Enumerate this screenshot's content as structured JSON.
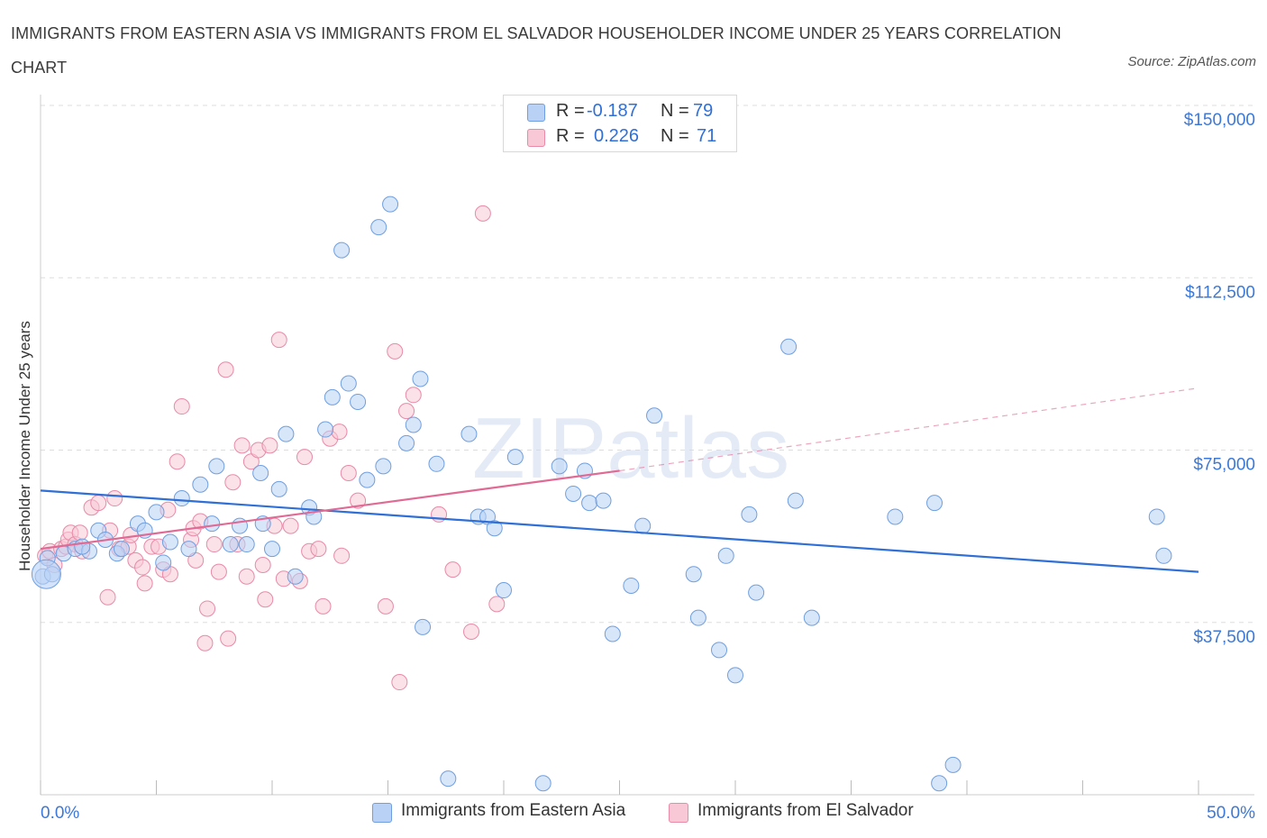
{
  "title": "IMMIGRANTS FROM EASTERN ASIA VS IMMIGRANTS FROM EL SALVADOR HOUSEHOLDER INCOME UNDER 25 YEARS CORRELATION CHART",
  "source": "Source: ZipAtlas.com",
  "watermark": "ZIPatlas",
  "colors": {
    "blue_fill": "#b8d1f5",
    "blue_stroke": "#6f9fe0",
    "blue_line": "#2f6fd6",
    "pink_fill": "#f8c8d6",
    "pink_stroke": "#e88aa8",
    "pink_line": "#e06a94",
    "axis_label_color": "#3b78d8",
    "grid": "#dddddd"
  },
  "legend_top": {
    "rows": [
      {
        "r_label": "R =",
        "r_value": "-0.187",
        "n_label": "N =",
        "n_value": "79"
      },
      {
        "r_label": "R =",
        "r_value": "0.226",
        "n_label": "N =",
        "n_value": "71"
      }
    ]
  },
  "legend_bottom": [
    {
      "label": "Immigrants from Eastern Asia"
    },
    {
      "label": "Immigrants from El Salvador"
    }
  ],
  "chart_data": {
    "type": "scatter",
    "title": "IMMIGRANTS FROM EASTERN ASIA VS IMMIGRANTS FROM EL SALVADOR HOUSEHOLDER INCOME UNDER 25 YEARS CORRELATION CHART",
    "xlabel": "",
    "ylabel": "Householder Income Under 25 years",
    "xlim": [
      0,
      50
    ],
    "ylim": [
      0,
      150000
    ],
    "x_tick_labels": [
      "0.0%",
      "50.0%"
    ],
    "y_ticks": [
      37500,
      75000,
      112500,
      150000
    ],
    "y_tick_labels": [
      "$37,500",
      "$75,000",
      "$112,500",
      "$150,000"
    ],
    "grid": "horizontal dashed",
    "legend_placement": "top-center and bottom",
    "series": [
      {
        "name": "Immigrants from Eastern Asia",
        "trend": {
          "x": [
            0,
            50
          ],
          "y": [
            66200,
            48500
          ]
        },
        "points": [
          [
            0.1,
            47500
          ],
          [
            0.3,
            51500
          ],
          [
            1.0,
            52500
          ],
          [
            1.5,
            53500
          ],
          [
            2.1,
            53000
          ],
          [
            2.5,
            57500
          ],
          [
            2.8,
            55500
          ],
          [
            3.3,
            52500
          ],
          [
            3.5,
            53500
          ],
          [
            4.2,
            59000
          ],
          [
            4.5,
            57500
          ],
          [
            5.0,
            61500
          ],
          [
            5.3,
            50500
          ],
          [
            5.6,
            55000
          ],
          [
            6.1,
            64500
          ],
          [
            6.4,
            53500
          ],
          [
            6.9,
            67500
          ],
          [
            7.4,
            59000
          ],
          [
            7.6,
            71500
          ],
          [
            8.2,
            54500
          ],
          [
            8.6,
            58500
          ],
          [
            8.9,
            54500
          ],
          [
            9.5,
            70000
          ],
          [
            9.6,
            59000
          ],
          [
            10.0,
            53500
          ],
          [
            10.3,
            66500
          ],
          [
            10.6,
            78500
          ],
          [
            11.0,
            47500
          ],
          [
            11.6,
            62500
          ],
          [
            11.8,
            60500
          ],
          [
            12.3,
            79500
          ],
          [
            12.6,
            86500
          ],
          [
            13.0,
            118500
          ],
          [
            13.3,
            89500
          ],
          [
            13.7,
            85500
          ],
          [
            14.1,
            68500
          ],
          [
            14.6,
            123500
          ],
          [
            14.8,
            71500
          ],
          [
            15.1,
            128500
          ],
          [
            15.8,
            76500
          ],
          [
            16.1,
            80500
          ],
          [
            16.4,
            90500
          ],
          [
            16.5,
            36500
          ],
          [
            17.1,
            72000
          ],
          [
            17.6,
            3500
          ],
          [
            18.5,
            78500
          ],
          [
            18.9,
            60500
          ],
          [
            19.3,
            60500
          ],
          [
            19.6,
            58000
          ],
          [
            20.0,
            44500
          ],
          [
            20.5,
            73500
          ],
          [
            21.7,
            2500
          ],
          [
            22.4,
            71500
          ],
          [
            23.0,
            65500
          ],
          [
            23.5,
            70500
          ],
          [
            23.7,
            63500
          ],
          [
            24.3,
            64000
          ],
          [
            24.7,
            35000
          ],
          [
            25.5,
            45500
          ],
          [
            26.0,
            58500
          ],
          [
            26.5,
            82500
          ],
          [
            28.2,
            48000
          ],
          [
            28.4,
            38500
          ],
          [
            29.3,
            31500
          ],
          [
            29.6,
            52000
          ],
          [
            30.0,
            26000
          ],
          [
            30.6,
            61000
          ],
          [
            30.9,
            44000
          ],
          [
            32.3,
            97500
          ],
          [
            32.6,
            64000
          ],
          [
            33.3,
            38500
          ],
          [
            36.9,
            60500
          ],
          [
            38.6,
            63500
          ],
          [
            38.8,
            2500
          ],
          [
            39.4,
            6500
          ],
          [
            48.2,
            60500
          ],
          [
            48.5,
            52000
          ],
          [
            0.5,
            48000
          ],
          [
            1.8,
            54000
          ]
        ]
      },
      {
        "name": "Immigrants from El Salvador",
        "trend": {
          "x": [
            0,
            25
          ],
          "y": [
            53500,
            70500
          ]
        },
        "trend_dashed": {
          "x": [
            25,
            50
          ],
          "y": [
            70500,
            88500
          ]
        },
        "points": [
          [
            0.2,
            52000
          ],
          [
            0.4,
            53000
          ],
          [
            0.6,
            50000
          ],
          [
            0.9,
            53500
          ],
          [
            1.1,
            54000
          ],
          [
            1.2,
            55500
          ],
          [
            1.3,
            57000
          ],
          [
            1.5,
            54500
          ],
          [
            1.7,
            57000
          ],
          [
            1.8,
            53000
          ],
          [
            2.2,
            62500
          ],
          [
            2.5,
            63500
          ],
          [
            2.9,
            43000
          ],
          [
            3.0,
            57500
          ],
          [
            3.2,
            64500
          ],
          [
            3.4,
            53500
          ],
          [
            3.8,
            54000
          ],
          [
            3.9,
            56500
          ],
          [
            4.1,
            51000
          ],
          [
            4.4,
            49500
          ],
          [
            4.5,
            46000
          ],
          [
            4.8,
            54000
          ],
          [
            5.1,
            54000
          ],
          [
            5.3,
            49000
          ],
          [
            5.5,
            62000
          ],
          [
            5.6,
            48000
          ],
          [
            5.9,
            72500
          ],
          [
            6.1,
            84500
          ],
          [
            6.5,
            55500
          ],
          [
            6.6,
            58000
          ],
          [
            6.7,
            51000
          ],
          [
            6.9,
            59500
          ],
          [
            7.1,
            33000
          ],
          [
            7.2,
            40500
          ],
          [
            7.5,
            54500
          ],
          [
            7.7,
            48500
          ],
          [
            8.0,
            92500
          ],
          [
            8.1,
            34000
          ],
          [
            8.3,
            68000
          ],
          [
            8.5,
            54500
          ],
          [
            8.7,
            76000
          ],
          [
            8.9,
            47500
          ],
          [
            9.1,
            72500
          ],
          [
            9.4,
            75000
          ],
          [
            9.6,
            50000
          ],
          [
            9.7,
            42500
          ],
          [
            9.9,
            76000
          ],
          [
            10.1,
            58500
          ],
          [
            10.3,
            99000
          ],
          [
            10.5,
            47000
          ],
          [
            10.8,
            58500
          ],
          [
            11.2,
            46500
          ],
          [
            11.4,
            73500
          ],
          [
            11.6,
            53000
          ],
          [
            12.0,
            53500
          ],
          [
            12.2,
            41000
          ],
          [
            12.5,
            77500
          ],
          [
            12.9,
            79000
          ],
          [
            13.0,
            52000
          ],
          [
            13.3,
            70000
          ],
          [
            13.7,
            64000
          ],
          [
            14.9,
            41000
          ],
          [
            15.3,
            96500
          ],
          [
            15.5,
            24500
          ],
          [
            15.8,
            83500
          ],
          [
            16.1,
            87000
          ],
          [
            17.2,
            61000
          ],
          [
            17.8,
            49000
          ],
          [
            18.6,
            35500
          ],
          [
            19.7,
            41500
          ],
          [
            19.1,
            126500
          ]
        ]
      }
    ]
  }
}
